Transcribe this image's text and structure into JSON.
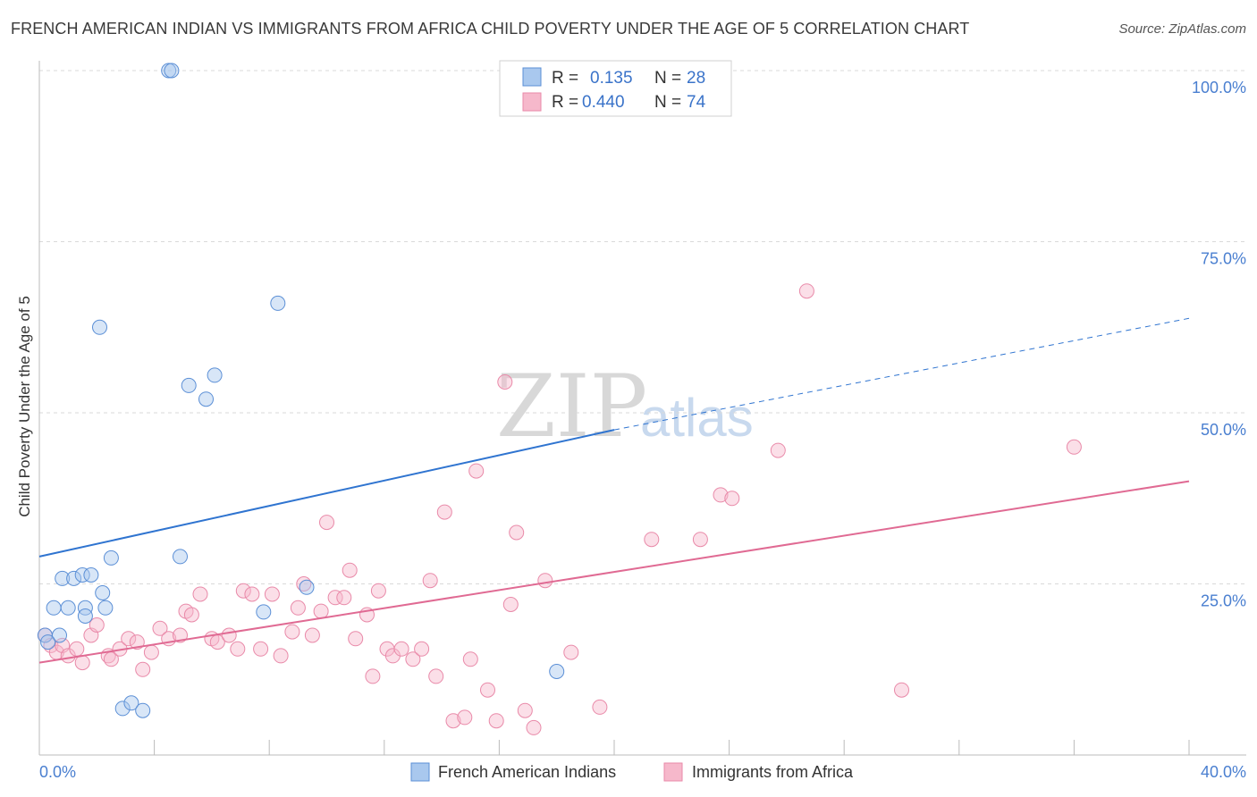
{
  "title": "FRENCH AMERICAN INDIAN VS IMMIGRANTS FROM AFRICA CHILD POVERTY UNDER THE AGE OF 5 CORRELATION CHART",
  "source": "Source: ZipAtlas.com",
  "watermark": {
    "zip": "ZIP",
    "atlas": "atlas"
  },
  "colors": {
    "blue_fill": "#a9c8ee",
    "blue_stroke": "#5b8fd6",
    "blue_line": "#2f74d0",
    "pink_fill": "#f6b8cb",
    "pink_stroke": "#e98aa9",
    "pink_line": "#e06a93",
    "grid": "#d9d9d9",
    "tick_text": "#4a7fd0"
  },
  "stats": [
    {
      "r_label": "R =",
      "r_value": "0.135",
      "n_label": "N =",
      "n_value": "28",
      "color": "blue"
    },
    {
      "r_label": "R =",
      "r_value": "0.440",
      "n_label": "N =",
      "n_value": "74",
      "color": "pink"
    }
  ],
  "chart_data": {
    "type": "scatter",
    "title": "FRENCH AMERICAN INDIAN VS IMMIGRANTS FROM AFRICA CHILD POVERTY UNDER THE AGE OF 5 CORRELATION CHART",
    "xlabel": "",
    "ylabel": "Child Poverty Under the Age of 5",
    "xlim": [
      0,
      40
    ],
    "ylim": [
      0,
      100
    ],
    "x_tick_labels": [
      "0.0%",
      "40.0%"
    ],
    "y_ticks": [
      25,
      50,
      75,
      100
    ],
    "y_tick_labels": [
      "25.0%",
      "50.0%",
      "75.0%",
      "100.0%"
    ],
    "grid": true,
    "legend_position": "bottom-center",
    "series": [
      {
        "name": "French American Indians",
        "color": "blue",
        "trend": {
          "x": [
            0,
            20
          ],
          "y": [
            29.0,
            47.5
          ],
          "dashed_to": [
            40,
            63.8
          ]
        },
        "points": [
          [
            0.2,
            17.5
          ],
          [
            0.7,
            17.5
          ],
          [
            0.3,
            16.5
          ],
          [
            0.5,
            21.5
          ],
          [
            0.8,
            25.8
          ],
          [
            1.0,
            21.5
          ],
          [
            1.2,
            25.8
          ],
          [
            1.5,
            26.3
          ],
          [
            1.8,
            26.3
          ],
          [
            1.6,
            21.5
          ],
          [
            1.6,
            20.3
          ],
          [
            2.2,
            23.7
          ],
          [
            2.3,
            21.5
          ],
          [
            2.5,
            28.8
          ],
          [
            2.1,
            62.5
          ],
          [
            2.9,
            6.8
          ],
          [
            3.2,
            7.6
          ],
          [
            3.6,
            6.5
          ],
          [
            4.5,
            100
          ],
          [
            4.6,
            100
          ],
          [
            4.9,
            29.0
          ],
          [
            5.2,
            54.0
          ],
          [
            5.8,
            52.0
          ],
          [
            6.1,
            55.5
          ],
          [
            7.8,
            20.9
          ],
          [
            8.3,
            66.0
          ],
          [
            9.3,
            24.5
          ],
          [
            18.0,
            12.2
          ]
        ]
      },
      {
        "name": "Immigrants from Africa",
        "color": "pink",
        "trend": {
          "x": [
            0,
            40
          ],
          "y": [
            13.5,
            40.0
          ]
        },
        "points": [
          [
            0.2,
            17.5
          ],
          [
            0.4,
            16.0
          ],
          [
            0.6,
            15.0
          ],
          [
            0.8,
            16.0
          ],
          [
            1.0,
            14.5
          ],
          [
            1.3,
            15.5
          ],
          [
            1.5,
            13.5
          ],
          [
            1.8,
            17.5
          ],
          [
            2.0,
            19.0
          ],
          [
            2.4,
            14.5
          ],
          [
            2.5,
            14.0
          ],
          [
            2.8,
            15.5
          ],
          [
            3.1,
            17.0
          ],
          [
            3.4,
            16.5
          ],
          [
            3.6,
            12.5
          ],
          [
            3.9,
            15.0
          ],
          [
            4.2,
            18.5
          ],
          [
            4.5,
            17.0
          ],
          [
            4.9,
            17.5
          ],
          [
            5.1,
            21.0
          ],
          [
            5.3,
            20.5
          ],
          [
            5.6,
            23.5
          ],
          [
            6.0,
            17.0
          ],
          [
            6.2,
            16.5
          ],
          [
            6.6,
            17.5
          ],
          [
            6.9,
            15.5
          ],
          [
            7.1,
            24.0
          ],
          [
            7.4,
            23.5
          ],
          [
            7.7,
            15.5
          ],
          [
            8.1,
            23.5
          ],
          [
            8.4,
            14.5
          ],
          [
            8.8,
            18.0
          ],
          [
            9.0,
            21.5
          ],
          [
            9.2,
            25.0
          ],
          [
            9.5,
            17.5
          ],
          [
            9.8,
            21.0
          ],
          [
            10.0,
            34.0
          ],
          [
            10.3,
            23.0
          ],
          [
            10.6,
            23.0
          ],
          [
            10.8,
            27.0
          ],
          [
            11.0,
            17.0
          ],
          [
            11.4,
            20.5
          ],
          [
            11.6,
            11.5
          ],
          [
            11.8,
            24.0
          ],
          [
            12.1,
            15.5
          ],
          [
            12.3,
            14.5
          ],
          [
            12.6,
            15.5
          ],
          [
            13.0,
            14.0
          ],
          [
            13.3,
            15.5
          ],
          [
            13.6,
            25.5
          ],
          [
            13.8,
            11.5
          ],
          [
            14.1,
            35.5
          ],
          [
            14.4,
            5.0
          ],
          [
            14.8,
            5.5
          ],
          [
            15.0,
            14.0
          ],
          [
            15.2,
            41.5
          ],
          [
            15.6,
            9.5
          ],
          [
            15.9,
            5.0
          ],
          [
            16.2,
            54.5
          ],
          [
            16.4,
            22.0
          ],
          [
            16.6,
            32.5
          ],
          [
            16.9,
            6.5
          ],
          [
            17.2,
            4.0
          ],
          [
            17.6,
            25.5
          ],
          [
            18.5,
            15.0
          ],
          [
            19.5,
            7.0
          ],
          [
            21.3,
            31.5
          ],
          [
            23.0,
            31.5
          ],
          [
            23.7,
            38.0
          ],
          [
            24.1,
            37.5
          ],
          [
            25.7,
            44.5
          ],
          [
            26.7,
            67.8
          ],
          [
            30.0,
            9.5
          ],
          [
            36.0,
            45.0
          ]
        ]
      }
    ]
  },
  "legend": [
    {
      "label": "French American Indians",
      "color": "blue"
    },
    {
      "label": "Immigrants from Africa",
      "color": "pink"
    }
  ]
}
